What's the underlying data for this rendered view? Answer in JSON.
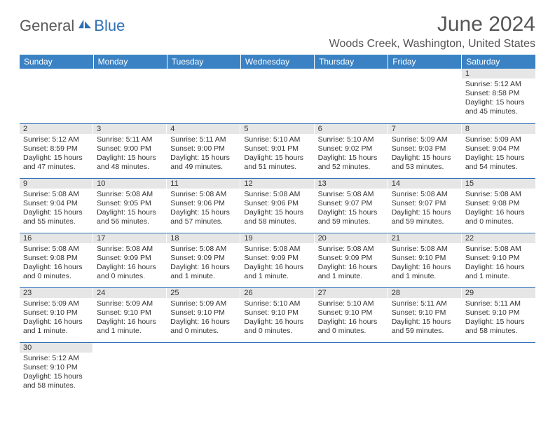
{
  "brand": {
    "part1": "General",
    "part2": "Blue"
  },
  "title": "June 2024",
  "location": "Woods Creek, Washington, United States",
  "colors": {
    "header_bg": "#3b82c4",
    "header_text": "#ffffff",
    "daynum_bg": "#e6e6e6",
    "row_divider": "#2e6fb5",
    "body_text": "#333333",
    "title_text": "#555555",
    "brand_gray": "#5a5a5a",
    "brand_blue": "#2e6fb5"
  },
  "weekdays": [
    "Sunday",
    "Monday",
    "Tuesday",
    "Wednesday",
    "Thursday",
    "Friday",
    "Saturday"
  ],
  "weeks": [
    [
      null,
      null,
      null,
      null,
      null,
      null,
      {
        "n": "1",
        "sr": "5:12 AM",
        "ss": "8:58 PM",
        "dl": "15 hours and 45 minutes."
      }
    ],
    [
      {
        "n": "2",
        "sr": "5:12 AM",
        "ss": "8:59 PM",
        "dl": "15 hours and 47 minutes."
      },
      {
        "n": "3",
        "sr": "5:11 AM",
        "ss": "9:00 PM",
        "dl": "15 hours and 48 minutes."
      },
      {
        "n": "4",
        "sr": "5:11 AM",
        "ss": "9:00 PM",
        "dl": "15 hours and 49 minutes."
      },
      {
        "n": "5",
        "sr": "5:10 AM",
        "ss": "9:01 PM",
        "dl": "15 hours and 51 minutes."
      },
      {
        "n": "6",
        "sr": "5:10 AM",
        "ss": "9:02 PM",
        "dl": "15 hours and 52 minutes."
      },
      {
        "n": "7",
        "sr": "5:09 AM",
        "ss": "9:03 PM",
        "dl": "15 hours and 53 minutes."
      },
      {
        "n": "8",
        "sr": "5:09 AM",
        "ss": "9:04 PM",
        "dl": "15 hours and 54 minutes."
      }
    ],
    [
      {
        "n": "9",
        "sr": "5:08 AM",
        "ss": "9:04 PM",
        "dl": "15 hours and 55 minutes."
      },
      {
        "n": "10",
        "sr": "5:08 AM",
        "ss": "9:05 PM",
        "dl": "15 hours and 56 minutes."
      },
      {
        "n": "11",
        "sr": "5:08 AM",
        "ss": "9:06 PM",
        "dl": "15 hours and 57 minutes."
      },
      {
        "n": "12",
        "sr": "5:08 AM",
        "ss": "9:06 PM",
        "dl": "15 hours and 58 minutes."
      },
      {
        "n": "13",
        "sr": "5:08 AM",
        "ss": "9:07 PM",
        "dl": "15 hours and 59 minutes."
      },
      {
        "n": "14",
        "sr": "5:08 AM",
        "ss": "9:07 PM",
        "dl": "15 hours and 59 minutes."
      },
      {
        "n": "15",
        "sr": "5:08 AM",
        "ss": "9:08 PM",
        "dl": "16 hours and 0 minutes."
      }
    ],
    [
      {
        "n": "16",
        "sr": "5:08 AM",
        "ss": "9:08 PM",
        "dl": "16 hours and 0 minutes."
      },
      {
        "n": "17",
        "sr": "5:08 AM",
        "ss": "9:09 PM",
        "dl": "16 hours and 0 minutes."
      },
      {
        "n": "18",
        "sr": "5:08 AM",
        "ss": "9:09 PM",
        "dl": "16 hours and 1 minute."
      },
      {
        "n": "19",
        "sr": "5:08 AM",
        "ss": "9:09 PM",
        "dl": "16 hours and 1 minute."
      },
      {
        "n": "20",
        "sr": "5:08 AM",
        "ss": "9:09 PM",
        "dl": "16 hours and 1 minute."
      },
      {
        "n": "21",
        "sr": "5:08 AM",
        "ss": "9:10 PM",
        "dl": "16 hours and 1 minute."
      },
      {
        "n": "22",
        "sr": "5:08 AM",
        "ss": "9:10 PM",
        "dl": "16 hours and 1 minute."
      }
    ],
    [
      {
        "n": "23",
        "sr": "5:09 AM",
        "ss": "9:10 PM",
        "dl": "16 hours and 1 minute."
      },
      {
        "n": "24",
        "sr": "5:09 AM",
        "ss": "9:10 PM",
        "dl": "16 hours and 1 minute."
      },
      {
        "n": "25",
        "sr": "5:09 AM",
        "ss": "9:10 PM",
        "dl": "16 hours and 0 minutes."
      },
      {
        "n": "26",
        "sr": "5:10 AM",
        "ss": "9:10 PM",
        "dl": "16 hours and 0 minutes."
      },
      {
        "n": "27",
        "sr": "5:10 AM",
        "ss": "9:10 PM",
        "dl": "16 hours and 0 minutes."
      },
      {
        "n": "28",
        "sr": "5:11 AM",
        "ss": "9:10 PM",
        "dl": "15 hours and 59 minutes."
      },
      {
        "n": "29",
        "sr": "5:11 AM",
        "ss": "9:10 PM",
        "dl": "15 hours and 58 minutes."
      }
    ],
    [
      {
        "n": "30",
        "sr": "5:12 AM",
        "ss": "9:10 PM",
        "dl": "15 hours and 58 minutes."
      },
      null,
      null,
      null,
      null,
      null,
      null
    ]
  ],
  "labels": {
    "sunrise": "Sunrise:",
    "sunset": "Sunset:",
    "daylight": "Daylight:"
  }
}
